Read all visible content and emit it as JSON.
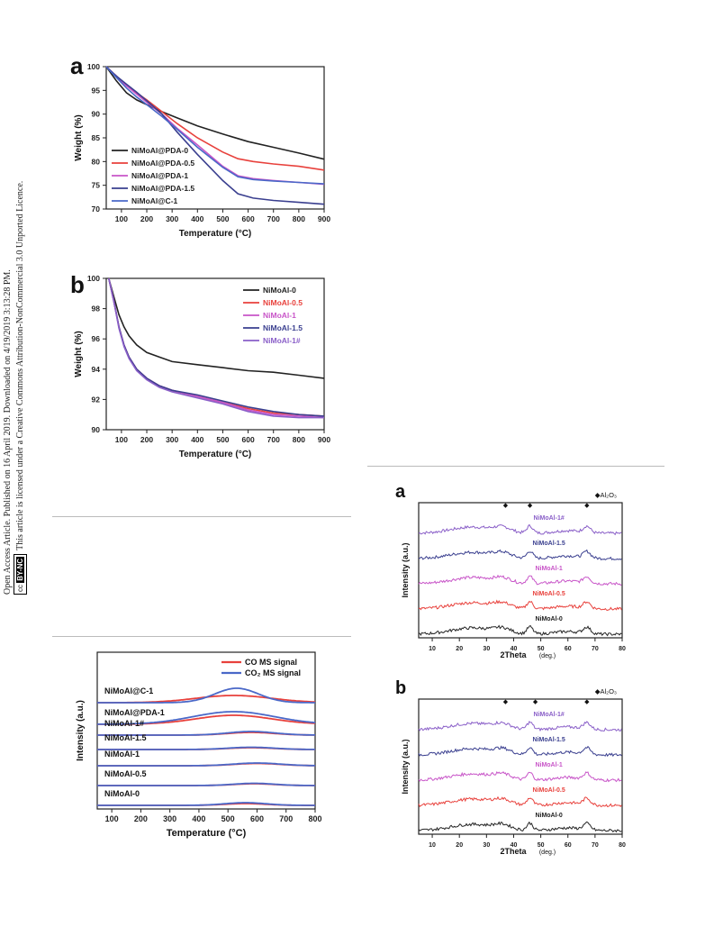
{
  "sidebar": {
    "line1": "Open Access Article. Published on 16 April 2019. Downloaded on 4/19/2019 3:13:28 PM.",
    "line2": "This article is licensed under a Creative Commons Attribution-NonCommercial 3.0 Unported Licence.",
    "badge_cc": "cc",
    "badge_text": "BY-NC"
  },
  "figures": [
    {
      "panel_label": "a",
      "chart_data": {
        "type": "line",
        "xlabel": "Temperature (°C)",
        "ylabel": "Weight (%)",
        "xlim": [
          40,
          900
        ],
        "ylim": [
          70,
          100
        ],
        "xticks": [
          100,
          200,
          300,
          400,
          500,
          600,
          700,
          800,
          900
        ],
        "yticks": [
          70,
          75,
          80,
          85,
          90,
          95,
          100
        ],
        "legend": "bottom-left",
        "series": [
          {
            "name": "NiMoAl@PDA-0",
            "color": "#222222",
            "x": [
              40,
              80,
              120,
              160,
              200,
              260,
              320,
              400,
              500,
              600,
              700,
              800,
              900
            ],
            "y": [
              100,
              97,
              94.5,
              93,
              92,
              90.5,
              89.2,
              87.5,
              85.8,
              84.2,
              83,
              81.8,
              80.5
            ]
          },
          {
            "name": "NiMoAl@PDA-0.5",
            "color": "#e8413c",
            "x": [
              40,
              80,
              120,
              160,
              200,
              260,
              320,
              400,
              500,
              560,
              620,
              700,
              800,
              900
            ],
            "y": [
              100,
              98,
              96,
              94.5,
              93,
              90.5,
              88,
              85,
              82,
              80.6,
              80,
              79.5,
              79,
              78.2
            ]
          },
          {
            "name": "NiMoAl@PDA-1",
            "color": "#c855c8",
            "x": [
              40,
              80,
              120,
              160,
              200,
              260,
              320,
              400,
              500,
              560,
              620,
              700,
              800,
              900
            ],
            "y": [
              100,
              98,
              96,
              94.2,
              92.5,
              90,
              87,
              83.5,
              79,
              77,
              76.4,
              76,
              75.6,
              75.2
            ]
          },
          {
            "name": "NiMoAl@PDA-1.5",
            "color": "#3a3f8f",
            "x": [
              40,
              80,
              120,
              160,
              200,
              260,
              320,
              400,
              500,
              560,
              620,
              700,
              800,
              900
            ],
            "y": [
              100,
              98,
              96.3,
              94.6,
              92.8,
              90,
              86.2,
              81.5,
              76,
              73.2,
              72.3,
              71.8,
              71.4,
              71
            ]
          },
          {
            "name": "NiMoAl@C-1",
            "color": "#4a68c8",
            "x": [
              40,
              80,
              120,
              160,
              200,
              260,
              320,
              400,
              500,
              560,
              620,
              700,
              800,
              900
            ],
            "y": [
              100,
              97.7,
              95.5,
              93.6,
              92,
              89.5,
              86.8,
              83,
              78.8,
              76.8,
              76.2,
              75.9,
              75.6,
              75.3
            ]
          }
        ]
      }
    },
    {
      "panel_label": "b",
      "chart_data": {
        "type": "line",
        "xlabel": "Temperature (°C)",
        "ylabel": "Weight (%)",
        "xlim": [
          40,
          900
        ],
        "ylim": [
          90,
          100
        ],
        "xticks": [
          100,
          200,
          300,
          400,
          500,
          600,
          700,
          800,
          900
        ],
        "yticks": [
          90,
          92,
          94,
          96,
          98,
          100
        ],
        "legend": "top-right",
        "series": [
          {
            "name": "NiMoAl-0",
            "color": "#222222",
            "x": [
              50,
              70,
              90,
              110,
              130,
              160,
              200,
              250,
              300,
              400,
              500,
              600,
              700,
              800,
              900
            ],
            "y": [
              100,
              98.8,
              97.6,
              96.8,
              96.2,
              95.6,
              95.1,
              94.8,
              94.5,
              94.3,
              94.1,
              93.9,
              93.8,
              93.6,
              93.4
            ]
          },
          {
            "name": "NiMoAl-0.5",
            "color": "#e8413c",
            "x": [
              50,
              70,
              90,
              110,
              130,
              160,
              200,
              250,
              300,
              400,
              500,
              600,
              700,
              800,
              900
            ],
            "y": [
              100,
              98.5,
              96.8,
              95.6,
              94.8,
              94,
              93.4,
              92.9,
              92.6,
              92.2,
              91.8,
              91.4,
              91.1,
              91,
              90.9
            ]
          },
          {
            "name": "NiMoAl-1",
            "color": "#c855c8",
            "x": [
              50,
              70,
              90,
              110,
              130,
              160,
              200,
              250,
              300,
              400,
              500,
              600,
              700,
              800,
              900
            ],
            "y": [
              100,
              98.5,
              96.8,
              95.6,
              94.8,
              94,
              93.4,
              92.9,
              92.6,
              92.2,
              91.8,
              91.3,
              91,
              90.9,
              90.8
            ]
          },
          {
            "name": "NiMoAl-1.5",
            "color": "#3a3f8f",
            "x": [
              50,
              70,
              90,
              110,
              130,
              160,
              200,
              250,
              300,
              400,
              500,
              600,
              700,
              800,
              900
            ],
            "y": [
              100,
              98.5,
              96.8,
              95.6,
              94.8,
              94,
              93.4,
              92.9,
              92.6,
              92.3,
              91.9,
              91.5,
              91.2,
              91,
              90.9
            ]
          },
          {
            "name": "NiMoAl-1#",
            "color": "#8a5fc8",
            "x": [
              50,
              70,
              90,
              110,
              130,
              160,
              200,
              250,
              300,
              400,
              500,
              600,
              700,
              800,
              900
            ],
            "y": [
              100,
              98.5,
              96.7,
              95.5,
              94.7,
              93.9,
              93.3,
              92.8,
              92.5,
              92.1,
              91.7,
              91.2,
              90.9,
              90.8,
              90.8
            ]
          }
        ]
      }
    },
    {
      "panel_label": "",
      "chart_data": {
        "type": "line",
        "xlabel": "Temperature (°C)",
        "ylabel": "Intensity (a.u.)",
        "xlim": [
          50,
          800
        ],
        "xticks": [
          100,
          200,
          300,
          400,
          500,
          600,
          700,
          800
        ],
        "legend": "top-right",
        "legend_entries": [
          {
            "name": "CO  MS signal",
            "color": "#e8413c"
          },
          {
            "name": "CO₂ MS signal",
            "color": "#4a68c8"
          }
        ],
        "traces": [
          {
            "label": "NiMoAl@C-1",
            "co_peak": [
              520,
              8,
              130
            ],
            "co2_peak": [
              530,
              16,
              75
            ]
          },
          {
            "label": "NiMoAl@PDA-1",
            "co_peak": [
              520,
              10,
              130
            ],
            "co2_peak": [
              520,
              14,
              140
            ]
          },
          {
            "label": "NiMoAl-1#",
            "co_peak": [
              580,
              3,
              80
            ],
            "co2_peak": [
              580,
              4,
              80
            ]
          },
          {
            "label": "NiMoAl-1.5",
            "co_peak": [
              580,
              2,
              80
            ],
            "co2_peak": [
              580,
              2.5,
              80
            ]
          },
          {
            "label": "NiMoAl-1",
            "co_peak": [
              600,
              2.5,
              80
            ],
            "co2_peak": [
              600,
              3,
              80
            ]
          },
          {
            "label": "NiMoAl-0.5",
            "co_peak": [
              590,
              2,
              70
            ],
            "co2_peak": [
              590,
              2.5,
              70
            ]
          },
          {
            "label": "NiMoAl-0",
            "co_peak": [
              560,
              2,
              70
            ],
            "co2_peak": [
              560,
              3,
              70
            ]
          }
        ]
      }
    },
    {
      "panel_label": "a",
      "chart_data": {
        "type": "line",
        "xlabel": "2Theta",
        "xlabel_unit": "(deg.)",
        "ylabel": "Intensity (a.u.)",
        "xlim": [
          5,
          80
        ],
        "xticks": [
          10,
          20,
          30,
          40,
          50,
          60,
          70,
          80
        ],
        "legend_marker": "◆Al₂O₃",
        "marker_positions": [
          37,
          46,
          67
        ],
        "traces": [
          {
            "label": "NiMoAl-1#",
            "color": "#8a5fc8"
          },
          {
            "label": "NiMoAl-1.5",
            "color": "#3a3f8f"
          },
          {
            "label": "NiMoAl-1",
            "color": "#c855c8"
          },
          {
            "label": "NiMoAl-0.5",
            "color": "#e8413c"
          },
          {
            "label": "NiMoAl-0",
            "color": "#222222"
          }
        ]
      }
    },
    {
      "panel_label": "b",
      "chart_data": {
        "type": "line",
        "xlabel": "2Theta",
        "xlabel_unit": "(deg.)",
        "ylabel": "Intensity (a.u.)",
        "xlim": [
          5,
          80
        ],
        "xticks": [
          10,
          20,
          30,
          40,
          50,
          60,
          70,
          80
        ],
        "legend_marker": "◆Al₂O₃",
        "marker_positions": [
          37,
          48,
          67
        ],
        "traces": [
          {
            "label": "NiMoAl-1#",
            "color": "#8a5fc8"
          },
          {
            "label": "NiMoAl-1.5",
            "color": "#3a3f8f"
          },
          {
            "label": "NiMoAl-1",
            "color": "#c855c8"
          },
          {
            "label": "NiMoAl-0.5",
            "color": "#e8413c"
          },
          {
            "label": "NiMoAl-0",
            "color": "#222222"
          }
        ]
      }
    }
  ]
}
